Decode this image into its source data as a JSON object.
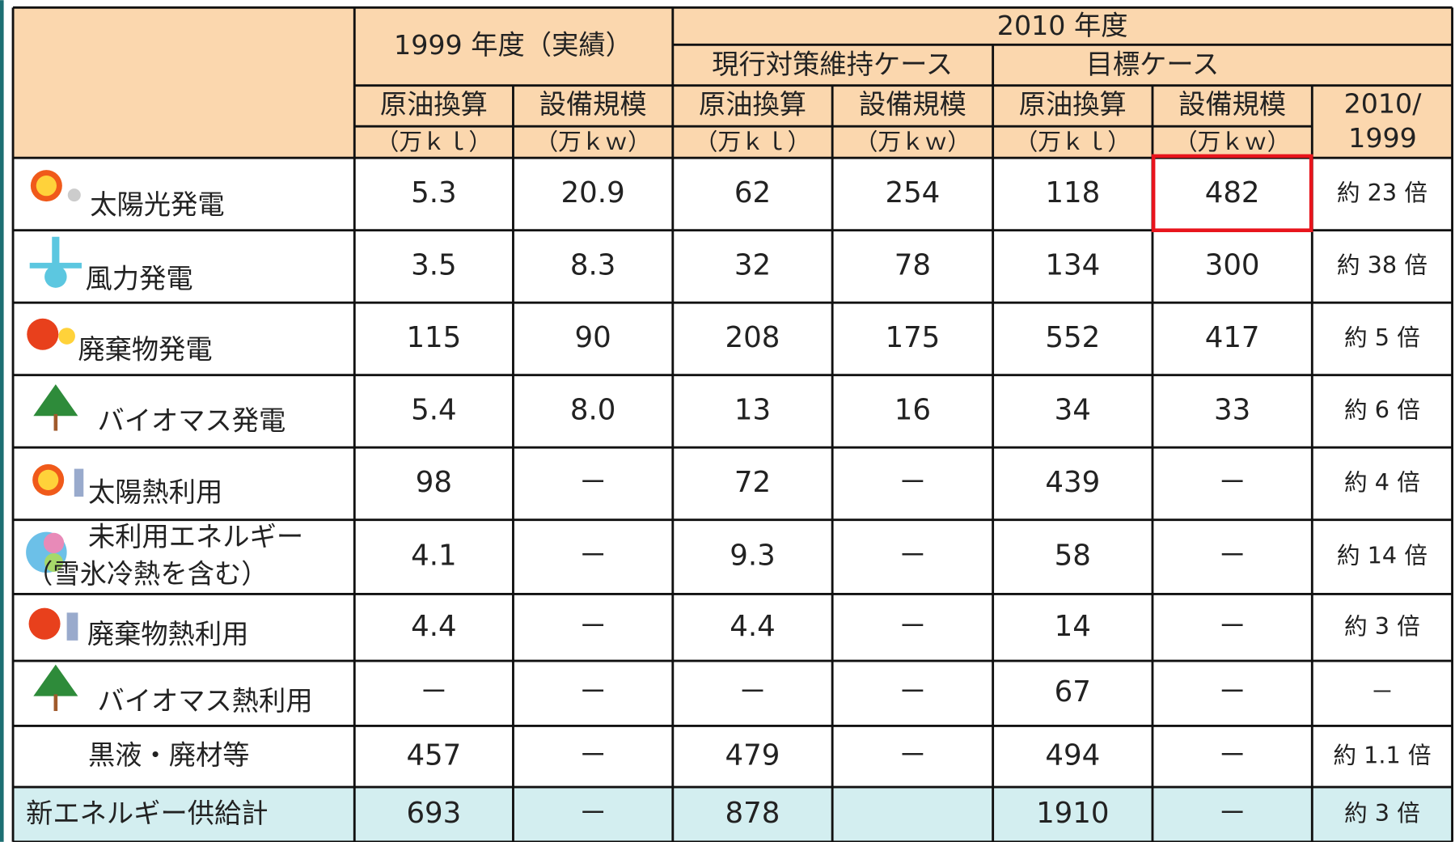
{
  "header": {
    "year_1999": "1999 年度（実績）",
    "year_2010": "2010 年度",
    "current_case": "現行対策維持ケース",
    "target_case": "目標ケース",
    "columns": [
      {
        "name": "原油換算",
        "unit": "（万ｋｌ）"
      },
      {
        "name": "設備規模",
        "unit": "（万ｋｗ）"
      },
      {
        "name": "原油換算",
        "unit": "（万ｋｌ）"
      },
      {
        "name": "設備規模",
        "unit": "（万ｋｗ）"
      },
      {
        "name": "原油換算",
        "unit": "（万ｋｌ）"
      },
      {
        "name": "設備規模",
        "unit": "（万ｋｗ）"
      }
    ],
    "ratio": [
      "2010/",
      "1999"
    ]
  },
  "rows": [
    {
      "label": [
        "太陽光発電"
      ],
      "cells": [
        "5.3",
        "20.9",
        "62",
        "254",
        "118",
        "482",
        "約 23 倍"
      ]
    },
    {
      "label": [
        "風力発電"
      ],
      "cells": [
        "3.5",
        "8.3",
        "32",
        "78",
        "134",
        "300",
        "約 38 倍"
      ]
    },
    {
      "label": [
        "廃棄物発電"
      ],
      "cells": [
        "115",
        "90",
        "208",
        "175",
        "552",
        "417",
        "約 5 倍"
      ]
    },
    {
      "label": [
        "バイオマス発電"
      ],
      "cells": [
        "5.4",
        "8.0",
        "13",
        "16",
        "34",
        "33",
        "約 6 倍"
      ]
    },
    {
      "label": [
        "太陽熱利用"
      ],
      "cells": [
        "98",
        "－",
        "72",
        "－",
        "439",
        "－",
        "約 4 倍"
      ]
    },
    {
      "label": [
        "未利用エネルギー",
        "（雪氷冷熱を含む）"
      ],
      "cells": [
        "4.1",
        "－",
        "9.3",
        "－",
        "58",
        "－",
        "約 14 倍"
      ]
    },
    {
      "label": [
        "廃棄物熱利用"
      ],
      "cells": [
        "4.4",
        "－",
        "4.4",
        "－",
        "14",
        "－",
        "約 3 倍"
      ]
    },
    {
      "label": [
        "バイオマス熱利用"
      ],
      "cells": [
        "－",
        "－",
        "－",
        "－",
        "67",
        "－",
        "－"
      ]
    },
    {
      "label": [
        "黒液・廃材等"
      ],
      "cells": [
        "457",
        "－",
        "479",
        "－",
        "494",
        "－",
        "約 1.1 倍"
      ]
    },
    {
      "label": [
        "新エネルギー供給計"
      ],
      "cells": [
        "693",
        "－",
        "878",
        null,
        "1910",
        "－",
        "約 3 倍"
      ]
    }
  ]
}
